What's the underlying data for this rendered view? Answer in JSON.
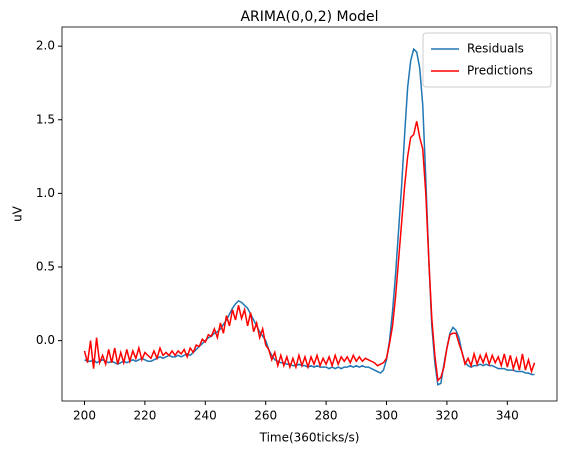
{
  "chart_data": {
    "type": "line",
    "title": "ARIMA(0,0,2) Model",
    "xlabel": "Time(360ticks/s)",
    "ylabel": "uV",
    "x": [
      200,
      201,
      202,
      203,
      204,
      205,
      206,
      207,
      208,
      209,
      210,
      211,
      212,
      213,
      214,
      215,
      216,
      217,
      218,
      219,
      220,
      221,
      222,
      223,
      224,
      225,
      226,
      227,
      228,
      229,
      230,
      231,
      232,
      233,
      234,
      235,
      236,
      237,
      238,
      239,
      240,
      241,
      242,
      243,
      244,
      245,
      246,
      247,
      248,
      249,
      250,
      251,
      252,
      253,
      254,
      255,
      256,
      257,
      258,
      259,
      260,
      261,
      262,
      263,
      264,
      265,
      266,
      267,
      268,
      269,
      270,
      271,
      272,
      273,
      274,
      275,
      276,
      277,
      278,
      279,
      280,
      281,
      282,
      283,
      284,
      285,
      286,
      287,
      288,
      289,
      290,
      291,
      292,
      293,
      294,
      295,
      296,
      297,
      298,
      299,
      300,
      301,
      302,
      303,
      304,
      305,
      306,
      307,
      308,
      309,
      310,
      311,
      312,
      313,
      314,
      315,
      316,
      317,
      318,
      319,
      320,
      321,
      322,
      323,
      324,
      325,
      326,
      327,
      328,
      329,
      330,
      331,
      332,
      333,
      334,
      335,
      336,
      337,
      338,
      339,
      340,
      341,
      342,
      343,
      344,
      345,
      346,
      347,
      348,
      349
    ],
    "series": [
      {
        "name": "Residuals",
        "color": "#1f77b4",
        "values": [
          -0.13,
          -0.14,
          -0.14,
          -0.13,
          -0.15,
          -0.14,
          -0.13,
          -0.14,
          -0.15,
          -0.14,
          -0.15,
          -0.16,
          -0.15,
          -0.14,
          -0.15,
          -0.14,
          -0.13,
          -0.14,
          -0.13,
          -0.12,
          -0.13,
          -0.14,
          -0.14,
          -0.13,
          -0.12,
          -0.11,
          -0.12,
          -0.11,
          -0.1,
          -0.11,
          -0.11,
          -0.1,
          -0.11,
          -0.1,
          -0.09,
          -0.1,
          -0.08,
          -0.06,
          -0.04,
          -0.02,
          0.0,
          0.02,
          0.03,
          0.05,
          0.06,
          0.08,
          0.11,
          0.14,
          0.18,
          0.22,
          0.25,
          0.27,
          0.26,
          0.24,
          0.22,
          0.18,
          0.14,
          0.1,
          0.06,
          0.03,
          0.0,
          -0.06,
          -0.1,
          -0.13,
          -0.14,
          -0.15,
          -0.15,
          -0.16,
          -0.16,
          -0.17,
          -0.17,
          -0.16,
          -0.17,
          -0.17,
          -0.18,
          -0.17,
          -0.18,
          -0.17,
          -0.18,
          -0.18,
          -0.18,
          -0.19,
          -0.18,
          -0.19,
          -0.18,
          -0.19,
          -0.18,
          -0.18,
          -0.17,
          -0.18,
          -0.17,
          -0.18,
          -0.17,
          -0.18,
          -0.18,
          -0.19,
          -0.2,
          -0.21,
          -0.22,
          -0.2,
          -0.13,
          0.0,
          0.2,
          0.45,
          0.75,
          1.05,
          1.4,
          1.72,
          1.9,
          1.98,
          1.96,
          1.85,
          1.6,
          1.1,
          0.55,
          0.1,
          -0.15,
          -0.3,
          -0.29,
          -0.16,
          -0.05,
          0.05,
          0.09,
          0.07,
          0.02,
          -0.08,
          -0.15,
          -0.17,
          -0.18,
          -0.17,
          -0.17,
          -0.16,
          -0.17,
          -0.16,
          -0.17,
          -0.17,
          -0.18,
          -0.19,
          -0.19,
          -0.19,
          -0.2,
          -0.2,
          -0.2,
          -0.21,
          -0.21,
          -0.21,
          -0.22,
          -0.22,
          -0.23,
          -0.23
        ]
      },
      {
        "name": "Predictions",
        "color": "#ff0000",
        "values": [
          -0.07,
          -0.15,
          0.0,
          -0.19,
          0.02,
          -0.15,
          -0.1,
          -0.16,
          -0.06,
          -0.15,
          -0.05,
          -0.16,
          -0.08,
          -0.15,
          -0.06,
          -0.14,
          -0.07,
          -0.12,
          -0.05,
          -0.13,
          -0.08,
          -0.1,
          -0.12,
          -0.07,
          -0.12,
          -0.05,
          -0.1,
          -0.08,
          -0.1,
          -0.07,
          -0.1,
          -0.07,
          -0.09,
          -0.06,
          -0.11,
          -0.05,
          -0.08,
          -0.03,
          -0.04,
          0.01,
          -0.01,
          0.04,
          0.03,
          0.08,
          0.02,
          0.12,
          0.05,
          0.17,
          0.1,
          0.21,
          0.14,
          0.24,
          0.15,
          0.21,
          0.1,
          0.19,
          0.06,
          0.12,
          0.02,
          0.08,
          -0.03,
          -0.06,
          -0.13,
          -0.08,
          -0.17,
          -0.1,
          -0.17,
          -0.11,
          -0.18,
          -0.12,
          -0.18,
          -0.1,
          -0.17,
          -0.11,
          -0.18,
          -0.11,
          -0.16,
          -0.1,
          -0.17,
          -0.12,
          -0.16,
          -0.11,
          -0.17,
          -0.1,
          -0.16,
          -0.11,
          -0.14,
          -0.11,
          -0.15,
          -0.1,
          -0.14,
          -0.11,
          -0.14,
          -0.12,
          -0.13,
          -0.14,
          -0.15,
          -0.17,
          -0.16,
          -0.15,
          -0.12,
          -0.02,
          0.1,
          0.3,
          0.55,
          0.8,
          1.05,
          1.25,
          1.38,
          1.4,
          1.49,
          1.38,
          1.3,
          1.0,
          0.55,
          0.15,
          -0.1,
          -0.27,
          -0.25,
          -0.18,
          -0.05,
          0.04,
          0.05,
          0.05,
          -0.02,
          -0.08,
          -0.16,
          -0.12,
          -0.17,
          -0.09,
          -0.16,
          -0.1,
          -0.15,
          -0.09,
          -0.16,
          -0.1,
          -0.15,
          -0.11,
          -0.17,
          -0.09,
          -0.18,
          -0.1,
          -0.19,
          -0.12,
          -0.2,
          -0.09,
          -0.2,
          -0.13,
          -0.21,
          -0.15
        ]
      }
    ],
    "xlim": [
      192.55,
      356.45
    ],
    "xticks": [
      200,
      220,
      240,
      260,
      280,
      300,
      320,
      340
    ],
    "ylim": [
      -0.41,
      2.13
    ],
    "yticks": [
      {
        "value": 0,
        "label": "0.0"
      },
      {
        "value": 0.5,
        "label": "0.5"
      },
      {
        "value": 1,
        "label": "1.0"
      },
      {
        "value": 1.5,
        "label": "1.5"
      },
      {
        "value": 2,
        "label": "2.0"
      }
    ],
    "legend": "upper right"
  }
}
